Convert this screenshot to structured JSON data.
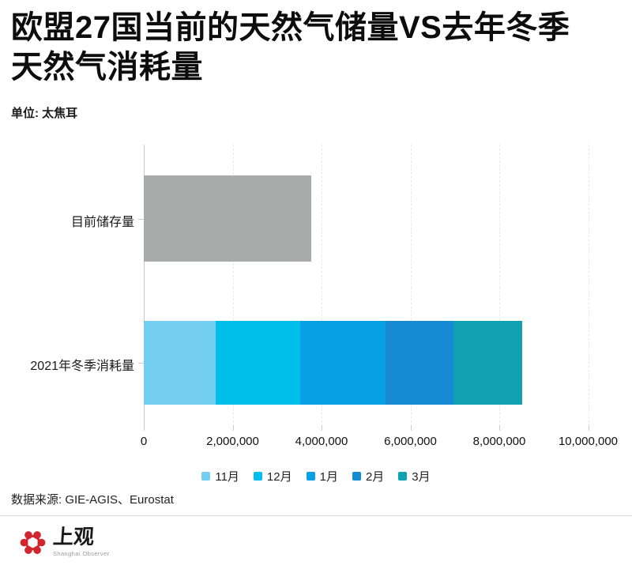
{
  "page": {
    "title_line1": "欧盟27国当前的天然气储量VS去年冬季",
    "title_line2": "天然气消耗量",
    "unit_label": "单位: 太焦耳",
    "source_label": "数据来源: GIE-AGIS、Eurostat",
    "logo": {
      "name_zh": "上观",
      "name_en": "Shanghai Observer",
      "brand_color": "#d2252e"
    }
  },
  "chart_data": {
    "type": "bar",
    "orientation": "horizontal",
    "title": "欧盟27国当前的天然气储量VS去年冬季天然气消耗量",
    "unit": "太焦耳",
    "grid": "vertical-dashed",
    "legend_position": "bottom-center",
    "categories": [
      "目前储存量",
      "2021年冬季消耗量"
    ],
    "bars": [
      {
        "category": "目前储存量",
        "total": 3770000,
        "segments": [
          {
            "name": "目前储存量",
            "value": 3770000,
            "color": "#a9abaa"
          }
        ]
      },
      {
        "category": "2021年冬季消耗量",
        "total": 8520000,
        "segments": [
          {
            "name": "11月",
            "value": 1620000,
            "color": "#74cff0"
          },
          {
            "name": "12月",
            "value": 1900000,
            "color": "#00beeb"
          },
          {
            "name": "1月",
            "value": 1920000,
            "color": "#07a0e4"
          },
          {
            "name": "2月",
            "value": 1530000,
            "color": "#168bd4"
          },
          {
            "name": "3月",
            "value": 1550000,
            "color": "#10a2b3"
          }
        ]
      }
    ],
    "legend": [
      {
        "label": "11月",
        "color": "#74cff0"
      },
      {
        "label": "12月",
        "color": "#00beeb"
      },
      {
        "label": "1月",
        "color": "#07a0e4"
      },
      {
        "label": "2月",
        "color": "#168bd4"
      },
      {
        "label": "3月",
        "color": "#10a2b3"
      }
    ],
    "x_axis": {
      "min": 0,
      "max": 10000000,
      "ticks": [
        {
          "value": 0,
          "label": "0"
        },
        {
          "value": 2000000,
          "label": "2,000,000"
        },
        {
          "value": 4000000,
          "label": "4,000,000"
        },
        {
          "value": 6000000,
          "label": "6,000,000"
        },
        {
          "value": 8000000,
          "label": "8,000,000"
        },
        {
          "value": 10000000,
          "label": "10,000,000"
        }
      ]
    }
  }
}
